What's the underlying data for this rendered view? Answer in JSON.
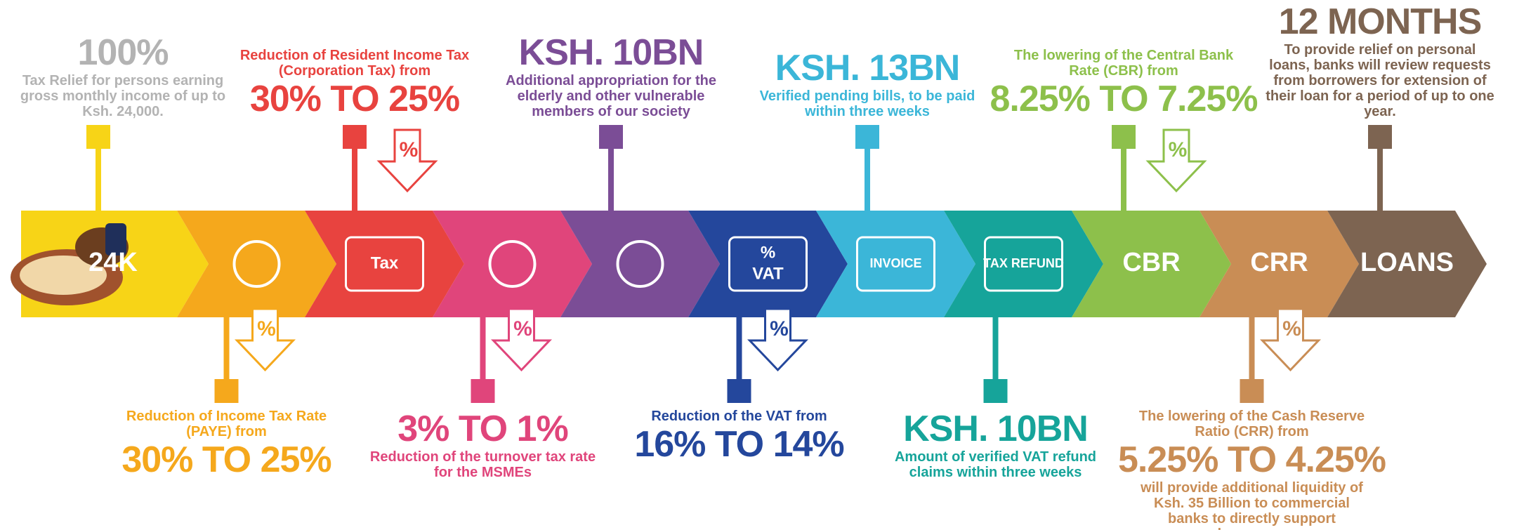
{
  "items": [
    {
      "color": "#f7d417",
      "text_color": "#b3b3b3",
      "headline": "100%",
      "note": "Tax Relief for persons earning gross monthly income of up to Ksh. 24,000.",
      "label": [
        "24K"
      ]
    },
    {
      "color": "#f5a81c",
      "intro": "Reduction of Income Tax Rate (PAYE) from",
      "headline": "30% TO 25%",
      "badge": "%"
    },
    {
      "color": "#e8433f",
      "intro": "Reduction of Resident Income Tax (Corporation Tax) from",
      "headline": "30% TO 25%",
      "badge": "%",
      "label": [
        "Tax"
      ]
    },
    {
      "color": "#e0457b",
      "headline": "3% TO 1%",
      "note": "Reduction of the turnover tax rate for the MSMEs",
      "badge": "%"
    },
    {
      "color": "#7b4d96",
      "headline": "KSH. 10BN",
      "note": "Additional appropriation for the elderly and other vulnerable members of our society"
    },
    {
      "color": "#24479c",
      "intro": "Reduction of the VAT from",
      "headline": "16% TO 14%",
      "badge": "%",
      "label": [
        "%",
        "VAT"
      ]
    },
    {
      "color": "#3bb6d8",
      "headline": "KSH. 13BN",
      "note": "Verified pending bills, to be paid within three weeks",
      "label": [
        "INVOICE"
      ]
    },
    {
      "color": "#16a49a",
      "headline": "KSH. 10BN",
      "note": "Amount of verified VAT refund claims within three weeks",
      "label": [
        "TAX REFUND"
      ]
    },
    {
      "color": "#8dc04b",
      "intro": "The lowering of the Central Bank Rate (CBR) from",
      "headline": "8.25% TO 7.25%",
      "badge": "%",
      "label": [
        "CBR"
      ]
    },
    {
      "color": "#c98d55",
      "intro": "The lowering of the Cash Reserve Ratio (CRR) from",
      "headline": "5.25% TO 4.25%",
      "note": "will provide additional liquidity of Ksh. 35 Billion to commercial banks to directly support borrowers",
      "badge": "%",
      "label": [
        "CRR"
      ]
    },
    {
      "color": "#7d6451",
      "headline": "12 MONTHS",
      "note": "To provide relief on personal loans, banks will review requests from borrowers for extension of their loan for a period of up to one year.",
      "label": [
        "LOANS"
      ]
    }
  ]
}
